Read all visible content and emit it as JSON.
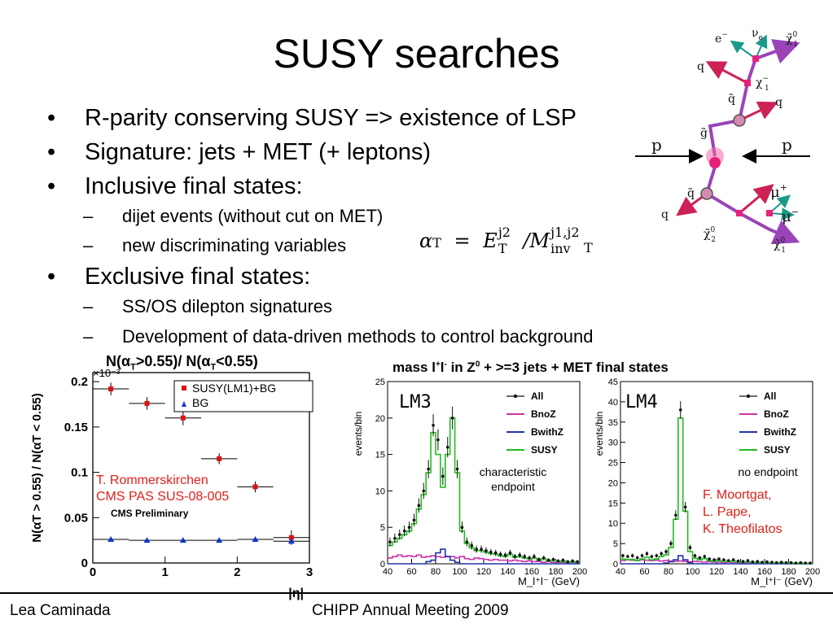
{
  "slide": {
    "title": "SUSY searches",
    "bullets": [
      "R-parity conserving SUSY => existence of LSP",
      "Signature: jets + MET (+ leptons)",
      "Inclusive final states:",
      "Exclusive final states:"
    ],
    "sub_inclusive": [
      "dijet events (without cut on MET)",
      "new discriminating variables"
    ],
    "sub_exclusive": [
      "SS/OS dilepton signatures",
      "Development of data-driven methods to control background"
    ],
    "bullet_symbol": "•",
    "dash_symbol": "–",
    "formula": {
      "alpha": "α",
      "T": "T",
      "eq": "=",
      "E": "E",
      "j2": "j2",
      "slash": "/",
      "M": "M",
      "j1j2": "j1,j2",
      "inv": "inv"
    }
  },
  "diagram": {
    "labels": {
      "e": "e",
      "e_sup": "−",
      "nu": "ν",
      "nu_sub": "e",
      "chi1_top": "χ̃",
      "chi1_top_sup": "0",
      "chi1_top_sub": "1",
      "q_top": "q",
      "chi_minus": "χ",
      "chi_minus_sup": "−",
      "chi_minus_sub": "1",
      "q_tilde_top": "q̃",
      "q_right": "q",
      "g_tilde": "g̃",
      "p_left": "p",
      "p_right": "p",
      "q_tilde_bottom": "q̃",
      "q_bottom": "q",
      "mu_plus": "μ",
      "mu_plus_sup": "+",
      "mu_minus": "μ",
      "mu_minus_sup": "−",
      "chi2": "χ̃",
      "chi2_sup": "0",
      "chi2_sub": "2",
      "chi1_bottom": "χ̃",
      "chi1_bottom_sup": "0",
      "chi1_bottom_sub": "1"
    },
    "colors": {
      "arrow": "#9a44b8",
      "quark": "#cc2255",
      "lepton": "#1a9a8a",
      "vertex": "#e8207a",
      "gluino": "#f06aa8"
    }
  },
  "charts": {
    "left": {
      "title_parts": {
        "n1": "N(",
        "a1": "α",
        "s1": "T",
        "c1": ">0.55)/ N(",
        "a2": "α",
        "s2": "T",
        "c2": "<0.55)"
      },
      "ylabel": "N(αT > 0.55) / N(αT < 0.55)",
      "xlabel": "|η|",
      "exponent": "×10⁻³",
      "watermark": "CMS Preliminary",
      "annotation": [
        "T. Rommerskirchen",
        "CMS PAS SUS-08-005"
      ]
    },
    "lm3": {
      "title_parts": {
        "a": "mass l",
        "sp": "+",
        "b": "l",
        "sm": "-",
        "c": " in Z",
        "s0": "0",
        "d": " + >=3 jets + MET final states"
      },
      "label": "LM3",
      "ylabel": "events/bin",
      "xlabel": "M_l⁺l⁻ (GeV)",
      "note": [
        "characteristic",
        "endpoint"
      ]
    },
    "lm4": {
      "label": "LM4",
      "ylabel": "events/bin",
      "xlabel": "M_l⁺l⁻ (GeV)",
      "note": [
        "no endpoint"
      ],
      "annotation": [
        "F. Moortgat,",
        "L. Pape,",
        "K. Theofilatos"
      ]
    }
  },
  "footer": {
    "author": "Lea Caminada",
    "event": "CHIPP Annual Meeting 2009"
  },
  "chart_data": [
    {
      "type": "scatter",
      "title": "N(αT>0.55)/ N(αT<0.55)",
      "xlabel": "|η|",
      "ylabel": "N(αT > 0.55) / N(αT < 0.55)",
      "xlim": [
        0,
        3
      ],
      "ylim": [
        0,
        0.21
      ],
      "y_multiplier": "×10⁻³",
      "x_ticks": [
        "0",
        "1",
        "2",
        "3"
      ],
      "y_ticks": [
        "0",
        "0.05",
        "0.1",
        "0.15",
        "0.2"
      ],
      "legend_position": "top-right",
      "series": [
        {
          "name": "SUSY(LM1)+BG",
          "color": "#dd1111",
          "marker": "square",
          "x": [
            0.25,
            0.75,
            1.25,
            1.75,
            2.25,
            2.75
          ],
          "y": [
            0.192,
            0.176,
            0.16,
            0.115,
            0.084,
            0.028
          ],
          "yerr": [
            0.007,
            0.007,
            0.008,
            0.006,
            0.006,
            0.008
          ]
        },
        {
          "name": "BG",
          "color": "#1133cc",
          "marker": "triangle",
          "x": [
            0.25,
            0.75,
            1.25,
            1.75,
            2.25,
            2.75
          ],
          "y": [
            0.026,
            0.025,
            0.025,
            0.025,
            0.026,
            0.024
          ]
        }
      ]
    },
    {
      "type": "line",
      "title": "mass l+l- in Z0 + >=3 jets + MET final states",
      "label": "LM3",
      "xlabel": "M_l⁺l⁻ (GeV)",
      "ylabel": "events/bin",
      "xlim": [
        40,
        200
      ],
      "ylim": [
        0,
        25
      ],
      "x_ticks": [
        "40",
        "60",
        "80",
        "100",
        "120",
        "140",
        "160",
        "180",
        "200"
      ],
      "y_ticks": [
        "0",
        "5",
        "10",
        "15",
        "20",
        "25"
      ],
      "legend_position": "top-right",
      "x": [
        42,
        46,
        50,
        54,
        58,
        62,
        66,
        70,
        74,
        78,
        82,
        86,
        90,
        94,
        98,
        102,
        106,
        110,
        114,
        118,
        122,
        126,
        130,
        134,
        138,
        142,
        146,
        150,
        154,
        158,
        162,
        166,
        170,
        174,
        178,
        182,
        186,
        190,
        194,
        198
      ],
      "series": [
        {
          "name": "All",
          "color": "#111111",
          "y": [
            3,
            3.5,
            4,
            4.5,
            5,
            6,
            8,
            10,
            13,
            19,
            17,
            12,
            16,
            20,
            13,
            5,
            3,
            2.5,
            2,
            2,
            1.8,
            1.6,
            1.5,
            1.3,
            1.2,
            1.5,
            1,
            1.2,
            1,
            0.8,
            1,
            0.6,
            0.8,
            0.5,
            0.6,
            0.4,
            0.5,
            0.3,
            0.4,
            0.3
          ]
        },
        {
          "name": "BnoZ",
          "color": "#cc33aa",
          "y": [
            0.8,
            1,
            1.2,
            1,
            1.1,
            1,
            1.2,
            0.9,
            1,
            1.1,
            1,
            0.9,
            1,
            1,
            0.8,
            1,
            0.7,
            0.6,
            0.8,
            0.7,
            0.6,
            0.5,
            0.6,
            0.5,
            0.5,
            0.4,
            0.5,
            0.4,
            0.3,
            0.4,
            0.3,
            0.3,
            0.2,
            0.3,
            0.2,
            0.2,
            0.2,
            0.1,
            0.2,
            0.1
          ]
        },
        {
          "name": "BwithZ",
          "color": "#2233aa",
          "y": [
            0,
            0,
            0,
            0,
            0,
            0,
            0,
            0,
            0.3,
            0.5,
            1.5,
            2,
            1,
            0.5,
            0.2,
            0,
            0,
            0,
            0,
            0,
            0,
            0,
            0,
            0,
            0,
            0,
            0,
            0,
            0,
            0,
            0,
            0,
            0,
            0,
            0,
            0,
            0,
            0,
            0,
            0
          ]
        },
        {
          "name": "SUSY",
          "color": "#22bb22",
          "y": [
            2.5,
            3,
            3.5,
            4,
            4.5,
            5.5,
            7.5,
            9.5,
            12.5,
            18,
            15,
            10.5,
            15,
            20,
            12.5,
            4.5,
            2.8,
            2.2,
            1.8,
            1.8,
            1.6,
            1.4,
            1.3,
            1.1,
            1,
            1.3,
            0.9,
            1,
            0.8,
            0.7,
            0.8,
            0.5,
            0.7,
            0.4,
            0.5,
            0.3,
            0.4,
            0.2,
            0.3,
            0.2
          ]
        }
      ]
    },
    {
      "type": "line",
      "label": "LM4",
      "xlabel": "M_l⁺l⁻ (GeV)",
      "ylabel": "events/bin",
      "xlim": [
        40,
        200
      ],
      "ylim": [
        0,
        45
      ],
      "x_ticks": [
        "40",
        "60",
        "80",
        "100",
        "120",
        "140",
        "160",
        "180",
        "200"
      ],
      "y_ticks": [
        "0",
        "5",
        "10",
        "15",
        "20",
        "25",
        "30",
        "35",
        "40",
        "45"
      ],
      "legend_position": "top-right",
      "x": [
        42,
        46,
        50,
        54,
        58,
        62,
        66,
        70,
        74,
        78,
        82,
        86,
        90,
        94,
        98,
        102,
        106,
        110,
        114,
        118,
        122,
        126,
        130,
        134,
        138,
        142,
        146,
        150,
        154,
        158,
        162,
        166,
        170,
        174,
        178,
        182,
        186,
        190,
        194,
        198
      ],
      "series": [
        {
          "name": "All",
          "color": "#111111",
          "y": [
            2,
            1.8,
            2,
            1.5,
            2,
            2.5,
            1.8,
            2,
            2.5,
            3,
            5,
            12,
            38,
            14,
            4,
            2,
            1.5,
            1.8,
            1.2,
            1,
            1.2,
            1,
            0.8,
            1,
            0.7,
            0.6,
            0.8,
            0.5,
            0.6,
            0.4,
            0.5,
            0.4,
            0.3,
            0.4,
            0.3,
            0.3,
            0.2,
            0.3,
            0.2,
            0.2
          ]
        },
        {
          "name": "BnoZ",
          "color": "#cc33aa",
          "y": [
            0.8,
            1,
            0.9,
            0.8,
            1,
            0.9,
            0.8,
            0.9,
            0.7,
            0.8,
            0.7,
            0.6,
            0.7,
            0.6,
            0.5,
            0.6,
            0.5,
            0.4,
            0.5,
            0.4,
            0.4,
            0.3,
            0.4,
            0.3,
            0.3,
            0.2,
            0.3,
            0.2,
            0.2,
            0.2,
            0.1,
            0.2,
            0.1,
            0.1,
            0.1,
            0.1,
            0.1,
            0.1,
            0.1,
            0.1
          ]
        },
        {
          "name": "BwithZ",
          "color": "#2233aa",
          "y": [
            0,
            0,
            0,
            0,
            0,
            0,
            0,
            0,
            0,
            0.2,
            0.5,
            1,
            2,
            1,
            0.3,
            0,
            0,
            0,
            0,
            0,
            0,
            0,
            0,
            0,
            0,
            0,
            0,
            0,
            0,
            0,
            0,
            0,
            0,
            0,
            0,
            0,
            0,
            0,
            0,
            0
          ]
        },
        {
          "name": "SUSY",
          "color": "#22bb22",
          "y": [
            1.2,
            1,
            1.1,
            0.8,
            1.2,
            1.6,
            1,
            1.2,
            1.8,
            2.2,
            4,
            11,
            36,
            13,
            3,
            1.4,
            1,
            1.3,
            0.8,
            0.6,
            0.8,
            0.7,
            0.5,
            0.7,
            0.4,
            0.4,
            0.5,
            0.3,
            0.4,
            0.2,
            0.3,
            0.2,
            0.2,
            0.3,
            0.2,
            0.2,
            0.1,
            0.2,
            0.1,
            0.1
          ]
        }
      ]
    }
  ]
}
